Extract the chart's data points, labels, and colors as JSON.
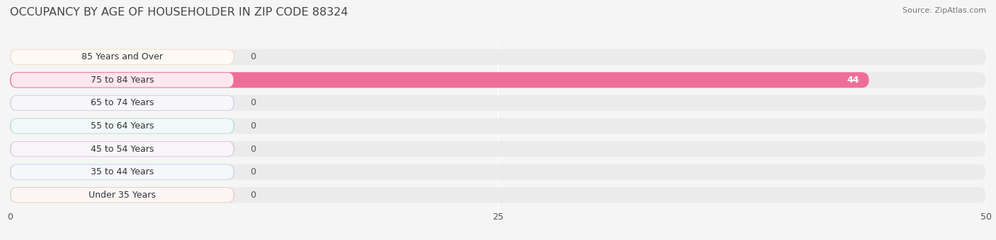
{
  "title": "OCCUPANCY BY AGE OF HOUSEHOLDER IN ZIP CODE 88324",
  "source": "Source: ZipAtlas.com",
  "categories": [
    "Under 35 Years",
    "35 to 44 Years",
    "45 to 54 Years",
    "55 to 64 Years",
    "65 to 74 Years",
    "75 to 84 Years",
    "85 Years and Over"
  ],
  "values": [
    0,
    0,
    0,
    0,
    0,
    44,
    0
  ],
  "bar_colors": [
    "#f4a8a8",
    "#a8b8e8",
    "#c4a0d4",
    "#7ecec4",
    "#b8b0e0",
    "#f06090",
    "#f8d0a0"
  ],
  "background_color": "#f5f5f5",
  "bar_background_color": "#ebebeb",
  "label_box_color": "#ffffff",
  "xlim": [
    0,
    50
  ],
  "xticks": [
    0,
    25,
    50
  ],
  "title_fontsize": 11.5,
  "label_fontsize": 9,
  "value_fontsize": 9,
  "bar_height": 0.68,
  "figsize": [
    14.06,
    3.4
  ],
  "dpi": 100
}
